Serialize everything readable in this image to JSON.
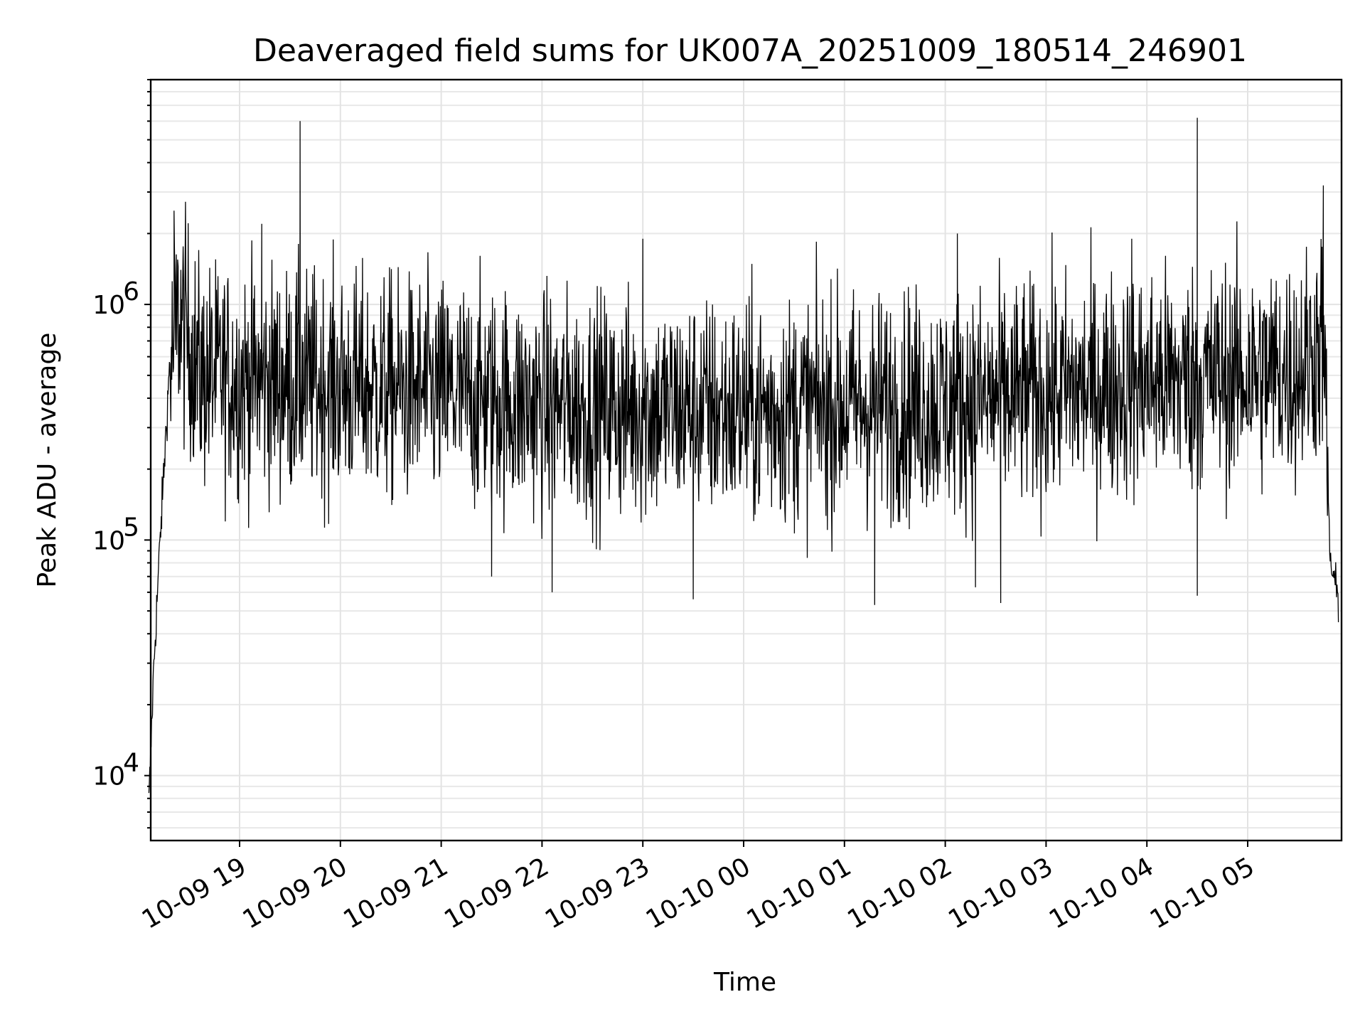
{
  "chart_data": {
    "type": "line",
    "title": "Deaveraged field sums for UK007A_20251009_180514_246901",
    "xlabel": "Time",
    "ylabel": "Peak ADU - average",
    "yscale": "log",
    "ylim": [
      5300,
      9000000
    ],
    "xlim_hours_after_1809": [
      0.1,
      11.9
    ],
    "grid": true,
    "x_ticks": [
      {
        "label": "10-09 19",
        "hours": 1
      },
      {
        "label": "10-09 20",
        "hours": 2
      },
      {
        "label": "10-09 21",
        "hours": 3
      },
      {
        "label": "10-09 22",
        "hours": 4
      },
      {
        "label": "10-09 23",
        "hours": 5
      },
      {
        "label": "10-10 00",
        "hours": 6
      },
      {
        "label": "10-10 01",
        "hours": 7
      },
      {
        "label": "10-10 02",
        "hours": 8
      },
      {
        "label": "10-10 03",
        "hours": 9
      },
      {
        "label": "10-10 04",
        "hours": 10
      },
      {
        "label": "10-10 05",
        "hours": 11
      }
    ],
    "y_ticks": [
      {
        "base": "10",
        "exp": "4",
        "value": 10000
      },
      {
        "base": "10",
        "exp": "5",
        "value": 100000
      },
      {
        "base": "10",
        "exp": "6",
        "value": 1000000
      }
    ],
    "series": [
      {
        "name": "field sums",
        "color": "#000000",
        "envelope": {
          "hours": [
            0.1,
            0.15,
            0.2,
            0.3,
            0.4,
            0.5,
            0.6,
            1.0,
            2.0,
            3.0,
            4.0,
            5.0,
            6.0,
            7.0,
            8.0,
            9.0,
            10.0,
            11.0,
            11.5,
            11.75,
            11.82,
            11.9
          ],
          "median": [
            7500,
            30000,
            80000,
            500000,
            900000,
            700000,
            500000,
            480000,
            450000,
            420000,
            370000,
            360000,
            350000,
            370000,
            380000,
            420000,
            470000,
            500000,
            520000,
            700000,
            80000,
            55000
          ]
        },
        "spikes": [
          {
            "hours": 0.35,
            "value": 2500000
          },
          {
            "hours": 1.22,
            "value": 2200000
          },
          {
            "hours": 1.6,
            "value": 6000000
          },
          {
            "hours": 5.0,
            "value": 1900000
          },
          {
            "hours": 8.12,
            "value": 2000000
          },
          {
            "hours": 9.85,
            "value": 1900000
          },
          {
            "hours": 10.5,
            "value": 6200000
          },
          {
            "hours": 11.75,
            "value": 3200000
          }
        ],
        "dips": [
          {
            "hours": 3.5,
            "value": 70000
          },
          {
            "hours": 4.1,
            "value": 60000
          },
          {
            "hours": 5.5,
            "value": 56000
          },
          {
            "hours": 7.3,
            "value": 53000
          },
          {
            "hours": 8.3,
            "value": 63000
          },
          {
            "hours": 8.55,
            "value": 54000
          },
          {
            "hours": 10.5,
            "value": 58000
          }
        ]
      }
    ]
  }
}
